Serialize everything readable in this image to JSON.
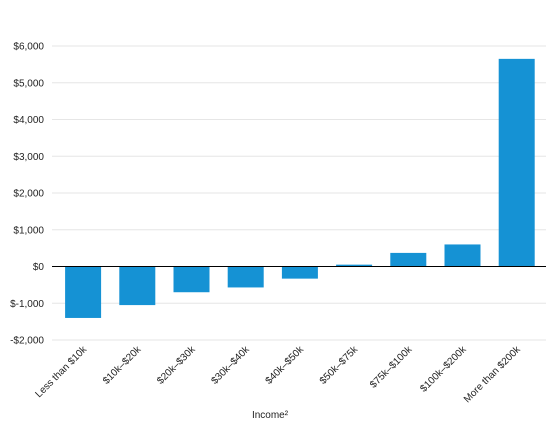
{
  "chart_data": {
    "type": "bar",
    "title": "",
    "xlabel": "Income²",
    "ylabel": "",
    "categories": [
      "Less than $10k",
      "$10k–$20k",
      "$20k–$30k",
      "$30k–$40k",
      "$40k–$50k",
      "$50k–$75k",
      "$75k–$100k",
      "$100k–$200k",
      "More than $200k"
    ],
    "values": [
      -1400,
      -1050,
      -700,
      -570,
      -330,
      50,
      370,
      600,
      5650
    ],
    "ylim": [
      -2000,
      6000
    ],
    "yticks": [
      -2000,
      -1000,
      0,
      1000,
      2000,
      3000,
      4000,
      5000,
      6000
    ],
    "ytick_labels": [
      "-$2,000",
      "$-1,000",
      "$0",
      "$1,000",
      "$2,000",
      "$3,000",
      "$4,000",
      "$5,000",
      "$6,000"
    ],
    "grid": true,
    "bar_color": "#1592d4",
    "grid_color": "#e6e6e6",
    "zero_line_color": "#000000"
  }
}
